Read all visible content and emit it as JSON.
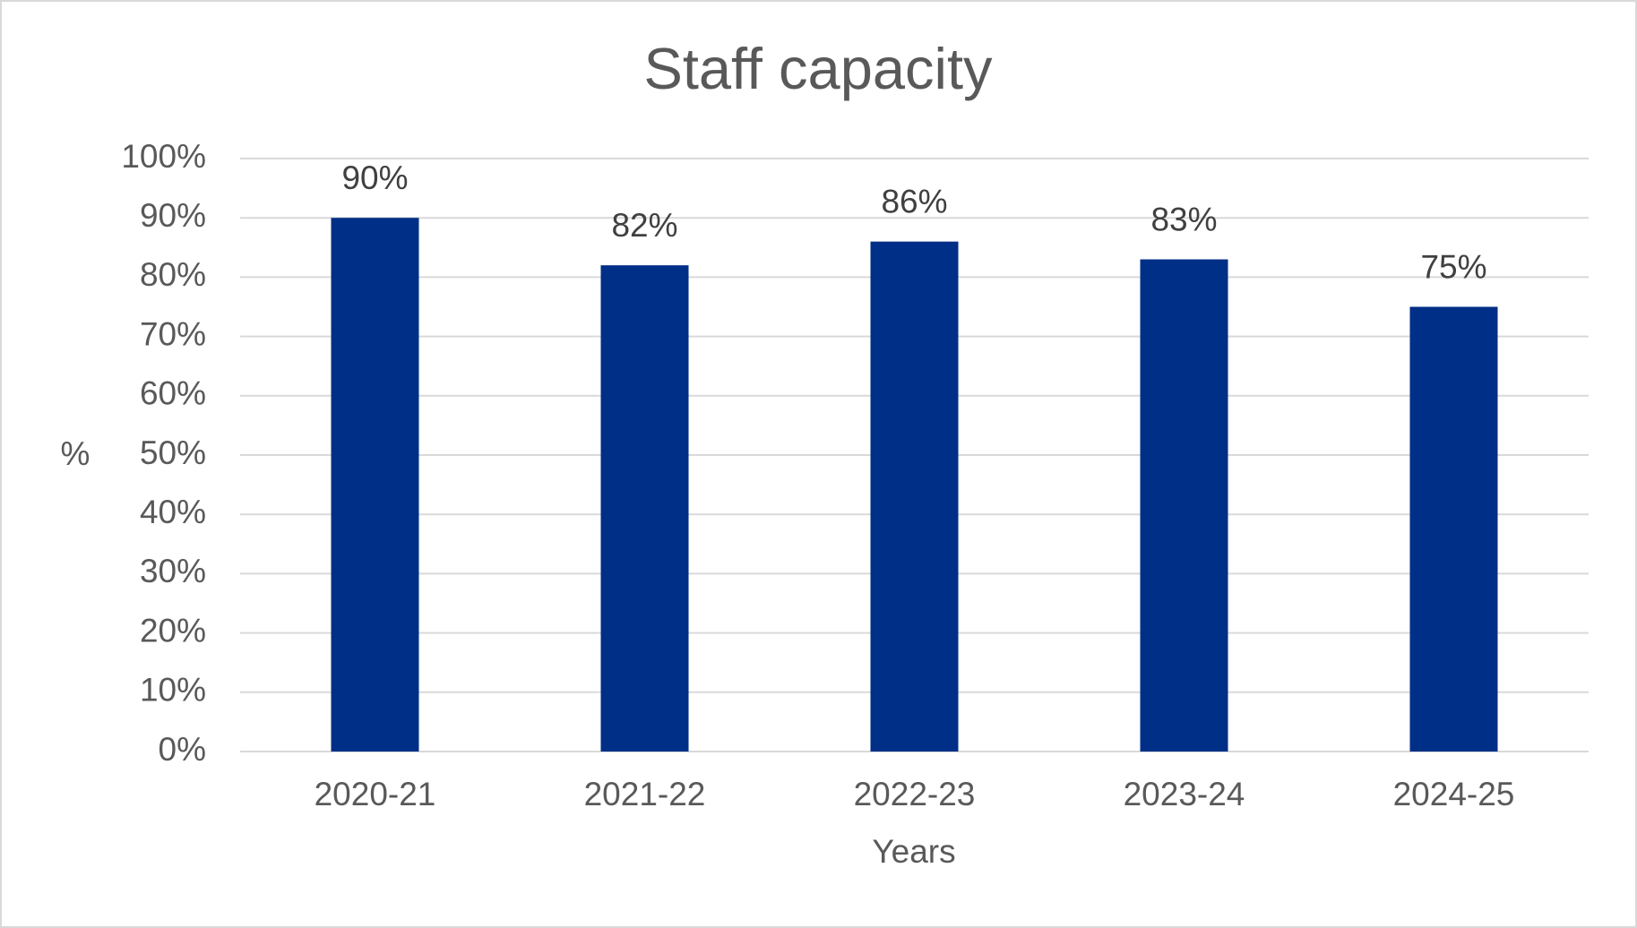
{
  "chart_data": {
    "type": "bar",
    "title": "Staff capacity",
    "x_label": "Years",
    "y_label": "%",
    "categories": [
      "2020-21",
      "2021-22",
      "2022-23",
      "2023-24",
      "2024-25"
    ],
    "values": [
      90,
      82,
      86,
      83,
      75
    ],
    "value_labels": [
      "90%",
      "82%",
      "86%",
      "83%",
      "75%"
    ],
    "color": "#002f87",
    "ylim": [
      0,
      100
    ],
    "yticks": [
      {
        "value": 0,
        "label": "0%"
      },
      {
        "value": 10,
        "label": "10%"
      },
      {
        "value": 20,
        "label": "20%"
      },
      {
        "value": 30,
        "label": "30%"
      },
      {
        "value": 40,
        "label": "40%"
      },
      {
        "value": 50,
        "label": "50%"
      },
      {
        "value": 60,
        "label": "60%"
      },
      {
        "value": 70,
        "label": "70%"
      },
      {
        "value": 80,
        "label": "80%"
      },
      {
        "value": 90,
        "label": "90%"
      },
      {
        "value": 100,
        "label": "100%"
      }
    ],
    "grid": true
  }
}
